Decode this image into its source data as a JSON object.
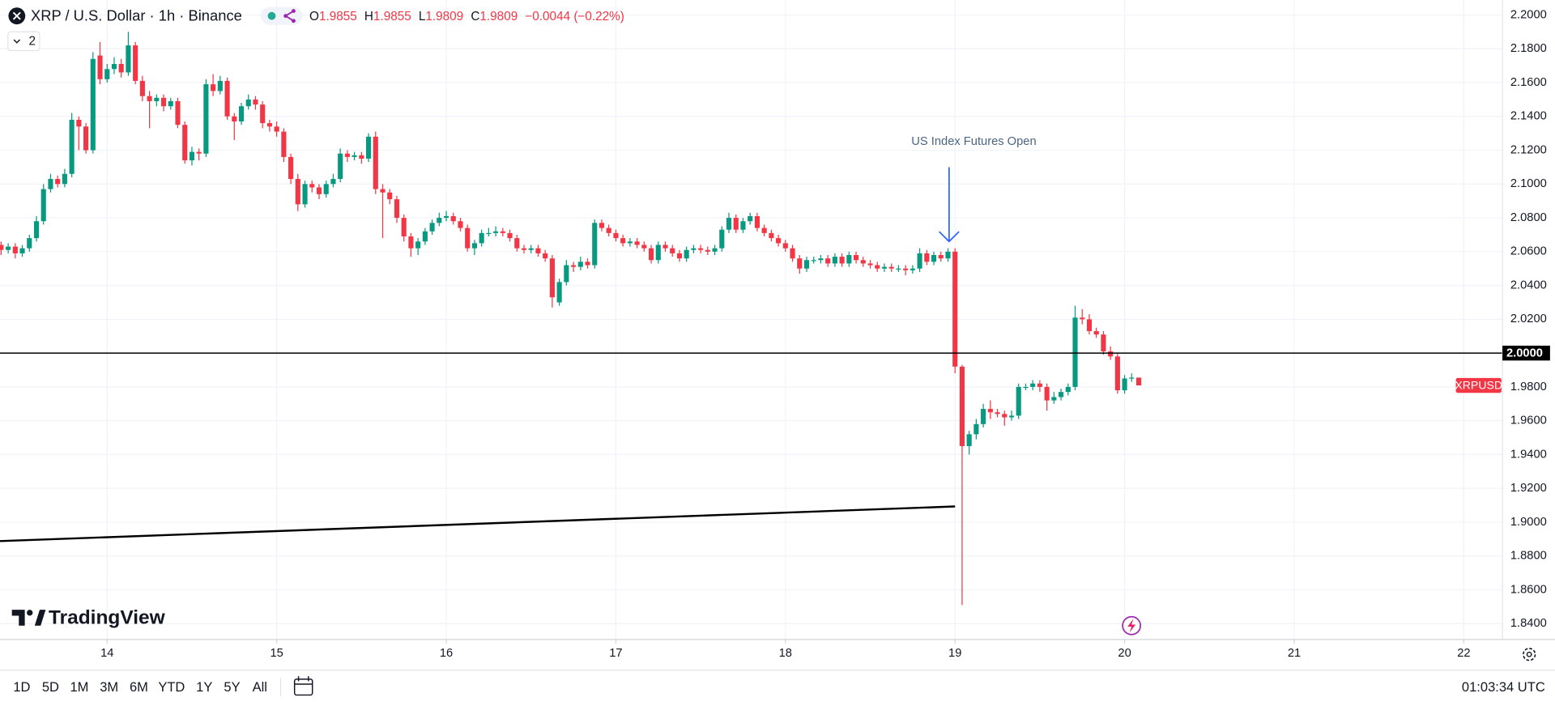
{
  "header": {
    "symbol": "XRP / U.S. Dollar · 1h · Binance",
    "indicators": "2",
    "ohlc_labels": [
      "O",
      "H",
      "L",
      "C"
    ],
    "change": "−0.0044 (−0.22%)"
  },
  "chart_data": {
    "type": "candlestick",
    "up_color": "#089981",
    "down_color": "#f23645",
    "open": [
      2.064,
      2.061,
      2.063,
      2.059,
      2.062,
      2.068,
      2.078,
      2.097,
      2.103,
      2.1,
      2.106,
      2.138,
      2.134,
      2.12,
      2.176,
      2.162,
      2.168,
      2.171,
      2.166,
      2.182,
      2.161,
      2.152,
      2.149,
      2.151,
      2.146,
      2.149,
      2.135,
      2.114,
      2.119,
      2.118,
      2.159,
      2.155,
      2.161,
      2.14,
      2.137,
      2.146,
      2.15,
      2.147,
      2.136,
      2.134,
      2.131,
      2.116,
      2.103,
      2.088,
      2.1,
      2.098,
      2.094,
      2.1,
      2.103,
      2.118,
      2.116,
      2.117,
      2.115,
      2.128,
      2.097,
      2.095,
      2.091,
      2.08,
      2.069,
      2.062,
      2.066,
      2.072,
      2.077,
      2.08,
      2.081,
      2.078,
      2.074,
      2.062,
      2.065,
      2.071,
      2.071,
      2.072,
      2.071,
      2.068,
      2.062,
      2.061,
      2.062,
      2.059,
      2.056,
      2.03,
      2.042,
      2.052,
      2.051,
      2.054,
      2.052,
      2.077,
      2.074,
      2.071,
      2.068,
      2.065,
      2.066,
      2.064,
      2.062,
      2.055,
      2.064,
      2.062,
      2.059,
      2.056,
      2.061,
      2.062,
      2.061,
      2.06,
      2.062,
      2.073,
      2.08,
      2.073,
      2.078,
      2.081,
      2.074,
      2.071,
      2.068,
      2.065,
      2.062,
      2.056,
      2.05,
      2.055,
      2.055,
      2.056,
      2.053,
      2.057,
      2.053,
      2.058,
      2.055,
      2.053,
      2.052,
      2.05,
      2.051,
      2.05,
      2.05,
      2.049,
      2.05,
      2.059,
      2.054,
      2.058,
      2.056,
      2.06,
      1.992,
      1.945,
      1.952,
      1.958,
      1.967,
      1.965,
      1.964,
      1.962,
      1.963,
      1.98,
      1.98,
      1.982,
      1.98,
      1.972,
      1.974,
      1.977,
      1.98,
      2.021,
      2.02,
      2.013,
      2.011,
      2.001,
      1.998,
      1.978,
      1.985,
      1.9855
    ],
    "high": [
      2.066,
      2.065,
      2.065,
      2.064,
      2.07,
      2.081,
      2.1,
      2.106,
      2.105,
      2.109,
      2.142,
      2.14,
      2.136,
      2.178,
      2.184,
      2.171,
      2.175,
      2.174,
      2.19,
      2.184,
      2.164,
      2.155,
      2.153,
      2.153,
      2.151,
      2.151,
      2.137,
      2.122,
      2.121,
      2.162,
      2.165,
      2.164,
      2.163,
      2.142,
      2.148,
      2.153,
      2.152,
      2.149,
      2.138,
      2.137,
      2.133,
      2.118,
      2.106,
      2.102,
      2.102,
      2.1,
      2.102,
      2.106,
      2.121,
      2.12,
      2.119,
      2.119,
      2.13,
      2.131,
      2.1,
      2.097,
      2.093,
      2.082,
      2.071,
      2.068,
      2.074,
      2.079,
      2.083,
      2.084,
      2.083,
      2.08,
      2.076,
      2.067,
      2.073,
      2.074,
      2.075,
      2.074,
      2.073,
      2.07,
      2.064,
      2.064,
      2.064,
      2.061,
      2.058,
      2.044,
      2.055,
      2.054,
      2.057,
      2.056,
      2.079,
      2.079,
      2.076,
      2.073,
      2.07,
      2.068,
      2.068,
      2.066,
      2.064,
      2.066,
      2.066,
      2.064,
      2.061,
      2.063,
      2.064,
      2.064,
      2.063,
      2.064,
      2.075,
      2.083,
      2.082,
      2.08,
      2.083,
      2.083,
      2.076,
      2.073,
      2.07,
      2.067,
      2.064,
      2.058,
      2.057,
      2.057,
      2.058,
      2.058,
      2.059,
      2.059,
      2.06,
      2.06,
      2.057,
      2.055,
      2.054,
      2.053,
      2.053,
      2.052,
      2.052,
      2.052,
      2.062,
      2.061,
      2.06,
      2.06,
      2.062,
      2.062,
      1.993,
      1.954,
      1.961,
      1.97,
      1.972,
      1.967,
      1.966,
      1.966,
      1.982,
      1.982,
      1.984,
      1.984,
      1.982,
      1.977,
      1.979,
      1.982,
      2.028,
      2.026,
      2.023,
      2.015,
      2.013,
      2.004,
      2.0,
      1.987,
      1.988,
      1.9855
    ],
    "low": [
      2.058,
      2.059,
      2.056,
      2.057,
      2.06,
      2.066,
      2.076,
      2.095,
      2.098,
      2.098,
      2.104,
      2.12,
      2.118,
      2.118,
      2.159,
      2.16,
      2.165,
      2.163,
      2.164,
      2.159,
      2.149,
      2.133,
      2.146,
      2.143,
      2.144,
      2.133,
      2.112,
      2.111,
      2.114,
      2.116,
      2.152,
      2.153,
      2.138,
      2.126,
      2.135,
      2.144,
      2.144,
      2.133,
      2.131,
      2.128,
      2.113,
      2.1,
      2.084,
      2.086,
      2.095,
      2.091,
      2.092,
      2.098,
      2.101,
      2.113,
      2.114,
      2.112,
      2.113,
      2.094,
      2.068,
      2.088,
      2.077,
      2.066,
      2.057,
      2.058,
      2.064,
      2.07,
      2.075,
      2.078,
      2.076,
      2.072,
      2.06,
      2.058,
      2.063,
      2.069,
      2.069,
      2.069,
      2.066,
      2.06,
      2.059,
      2.059,
      2.057,
      2.054,
      2.027,
      2.028,
      2.04,
      2.048,
      2.049,
      2.05,
      2.05,
      2.072,
      2.069,
      2.066,
      2.063,
      2.063,
      2.062,
      2.06,
      2.053,
      2.053,
      2.06,
      2.057,
      2.054,
      2.054,
      2.059,
      2.059,
      2.058,
      2.058,
      2.06,
      2.071,
      2.071,
      2.071,
      2.076,
      2.072,
      2.069,
      2.066,
      2.063,
      2.06,
      2.054,
      2.047,
      2.048,
      2.053,
      2.053,
      2.051,
      2.051,
      2.051,
      2.051,
      2.053,
      2.051,
      2.05,
      2.048,
      2.048,
      2.048,
      2.048,
      2.046,
      2.047,
      2.048,
      2.052,
      2.052,
      2.054,
      2.054,
      1.988,
      1.851,
      1.94,
      1.949,
      1.956,
      1.961,
      1.962,
      1.957,
      1.96,
      1.961,
      1.978,
      1.978,
      1.977,
      1.966,
      1.97,
      1.972,
      1.975,
      1.978,
      2.017,
      2.011,
      2.009,
      1.999,
      1.996,
      1.976,
      1.976,
      1.983,
      1.9809
    ],
    "close": [
      2.061,
      2.063,
      2.059,
      2.062,
      2.068,
      2.078,
      2.097,
      2.103,
      2.1,
      2.106,
      2.138,
      2.134,
      2.12,
      2.174,
      2.162,
      2.168,
      2.171,
      2.166,
      2.182,
      2.161,
      2.152,
      2.149,
      2.151,
      2.146,
      2.149,
      2.135,
      2.114,
      2.119,
      2.118,
      2.159,
      2.155,
      2.161,
      2.14,
      2.137,
      2.146,
      2.15,
      2.147,
      2.136,
      2.134,
      2.131,
      2.116,
      2.103,
      2.088,
      2.1,
      2.098,
      2.094,
      2.1,
      2.103,
      2.118,
      2.116,
      2.117,
      2.115,
      2.128,
      2.097,
      2.095,
      2.091,
      2.08,
      2.069,
      2.062,
      2.066,
      2.072,
      2.077,
      2.08,
      2.081,
      2.078,
      2.074,
      2.062,
      2.065,
      2.071,
      2.071,
      2.072,
      2.071,
      2.068,
      2.062,
      2.061,
      2.062,
      2.059,
      2.056,
      2.033,
      2.042,
      2.052,
      2.051,
      2.054,
      2.052,
      2.077,
      2.074,
      2.071,
      2.068,
      2.065,
      2.066,
      2.064,
      2.062,
      2.055,
      2.064,
      2.062,
      2.059,
      2.056,
      2.061,
      2.062,
      2.061,
      2.06,
      2.062,
      2.073,
      2.08,
      2.073,
      2.078,
      2.081,
      2.074,
      2.071,
      2.068,
      2.065,
      2.062,
      2.056,
      2.05,
      2.055,
      2.055,
      2.056,
      2.053,
      2.057,
      2.053,
      2.058,
      2.055,
      2.053,
      2.052,
      2.05,
      2.051,
      2.05,
      2.05,
      2.049,
      2.05,
      2.059,
      2.054,
      2.058,
      2.056,
      2.06,
      1.992,
      1.945,
      1.952,
      1.958,
      1.967,
      1.965,
      1.964,
      1.962,
      1.963,
      1.98,
      1.98,
      1.982,
      1.98,
      1.972,
      1.974,
      1.977,
      1.98,
      2.021,
      2.02,
      2.013,
      2.011,
      2.001,
      1.998,
      1.978,
      1.985,
      1.9855,
      1.9809
    ],
    "xlim": [
      -0.158,
      212.47
    ],
    "xticks": [
      {
        "value": 15,
        "label": "14"
      },
      {
        "value": 39,
        "label": "15"
      },
      {
        "value": 63,
        "label": "16"
      },
      {
        "value": 87,
        "label": "17"
      },
      {
        "value": 111,
        "label": "18"
      },
      {
        "value": 135,
        "label": "19"
      },
      {
        "value": 159,
        "label": "20"
      },
      {
        "value": 183,
        "label": "21"
      },
      {
        "value": 207,
        "label": "22"
      }
    ],
    "ylim": [
      1.8306,
      2.2088
    ],
    "yticks": [
      {
        "value": 2.2,
        "label": "2.2000"
      },
      {
        "value": 2.18,
        "label": "2.1800"
      },
      {
        "value": 2.16,
        "label": "2.1600"
      },
      {
        "value": 2.14,
        "label": "2.1400"
      },
      {
        "value": 2.12,
        "label": "2.1200"
      },
      {
        "value": 2.1,
        "label": "2.1000"
      },
      {
        "value": 2.08,
        "label": "2.0800"
      },
      {
        "value": 2.06,
        "label": "2.0600"
      },
      {
        "value": 2.04,
        "label": "2.0400"
      },
      {
        "value": 2.02,
        "label": "2.0200"
      },
      {
        "value": 2,
        "label": "2.0000"
      },
      {
        "value": 1.98,
        "label": "1.9800"
      },
      {
        "value": 1.96,
        "label": "1.9600"
      },
      {
        "value": 1.94,
        "label": "1.9400"
      },
      {
        "value": 1.92,
        "label": "1.9200"
      },
      {
        "value": 1.9,
        "label": "1.9000"
      },
      {
        "value": 1.88,
        "label": "1.8800"
      },
      {
        "value": 1.86,
        "label": "1.8600"
      },
      {
        "value": 1.84,
        "label": "1.8400"
      }
    ],
    "grid": true,
    "hlines": [
      {
        "value": 2,
        "label": "2.0000",
        "color": "#000000"
      }
    ],
    "trendlines": [
      {
        "x": [
          -0.158,
          135
        ],
        "y": [
          1.8888,
          1.9093
        ],
        "color": "#000000"
      }
    ],
    "annotations": [
      {
        "text": "US Index Futures Open",
        "x": 135,
        "y": 2.066,
        "color": "#2962ff"
      }
    ],
    "price_label": "XRPUSD"
  },
  "toolbar": {
    "ranges": [
      "1D",
      "5D",
      "1M",
      "3M",
      "6M",
      "YTD",
      "1Y",
      "5Y",
      "All"
    ],
    "clock": "01:03:34 UTC"
  },
  "branding": "TradingView"
}
